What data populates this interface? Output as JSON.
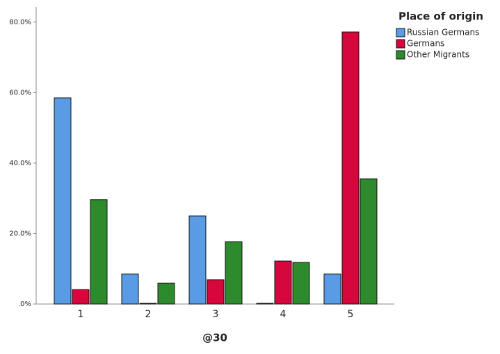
{
  "chart_data": {
    "type": "bar",
    "x_label": "@30",
    "legend_title": "Place of origin",
    "categories": [
      "1",
      "2",
      "3",
      "4",
      "5"
    ],
    "series": [
      {
        "name": "Russian Germans",
        "color": "#5a9be6",
        "values": [
          58.5,
          8.5,
          25.0,
          0.2,
          8.5
        ]
      },
      {
        "name": "Germans",
        "color": "#d6073c",
        "values": [
          4.1,
          0.2,
          6.9,
          12.2,
          77.2
        ]
      },
      {
        "name": "Other Migrants",
        "color": "#2d8a2d",
        "values": [
          29.6,
          5.9,
          17.7,
          11.8,
          35.5
        ]
      }
    ],
    "ylim": [
      0,
      84.3
    ],
    "yticks": [
      {
        "value": 0,
        "label": ".0%"
      },
      {
        "value": 20,
        "label": "20.0%"
      },
      {
        "value": 40,
        "label": "40.0%"
      },
      {
        "value": 60,
        "label": "60.0%"
      },
      {
        "value": 80,
        "label": "80.0%"
      }
    ],
    "legend": "top-right"
  }
}
